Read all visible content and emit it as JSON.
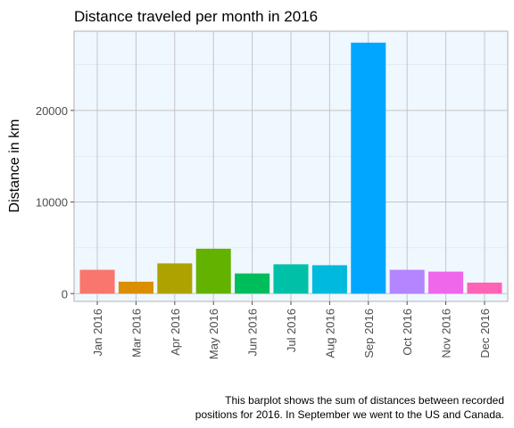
{
  "chart_data": {
    "type": "bar",
    "title": "Distance traveled per month in 2016",
    "xlabel": "",
    "ylabel": "Distance in km",
    "categories": [
      "Jan 2016",
      "Mar 2016",
      "Apr 2016",
      "May 2016",
      "Jun 2016",
      "Jul 2016",
      "Aug 2016",
      "Sep 2016",
      "Oct 2016",
      "Nov 2016",
      "Dec 2016"
    ],
    "values": [
      2600,
      1300,
      3300,
      4900,
      2200,
      3200,
      3100,
      27400,
      2600,
      2400,
      1200
    ],
    "colors": [
      "#f8766d",
      "#db8e00",
      "#aea200",
      "#64b200",
      "#00bd5c",
      "#00c1a7",
      "#00bade",
      "#00a6ff",
      "#b385ff",
      "#ef67eb",
      "#ff63b6"
    ],
    "yticks": [
      0,
      10000,
      20000
    ],
    "ylim": [
      -850,
      28650
    ],
    "grid": true,
    "panel_background": "#f0f8ff",
    "caption": [
      "This barplot shows the sum of distances between recorded",
      "positions for 2016. In September we went to the US and Canada."
    ]
  }
}
